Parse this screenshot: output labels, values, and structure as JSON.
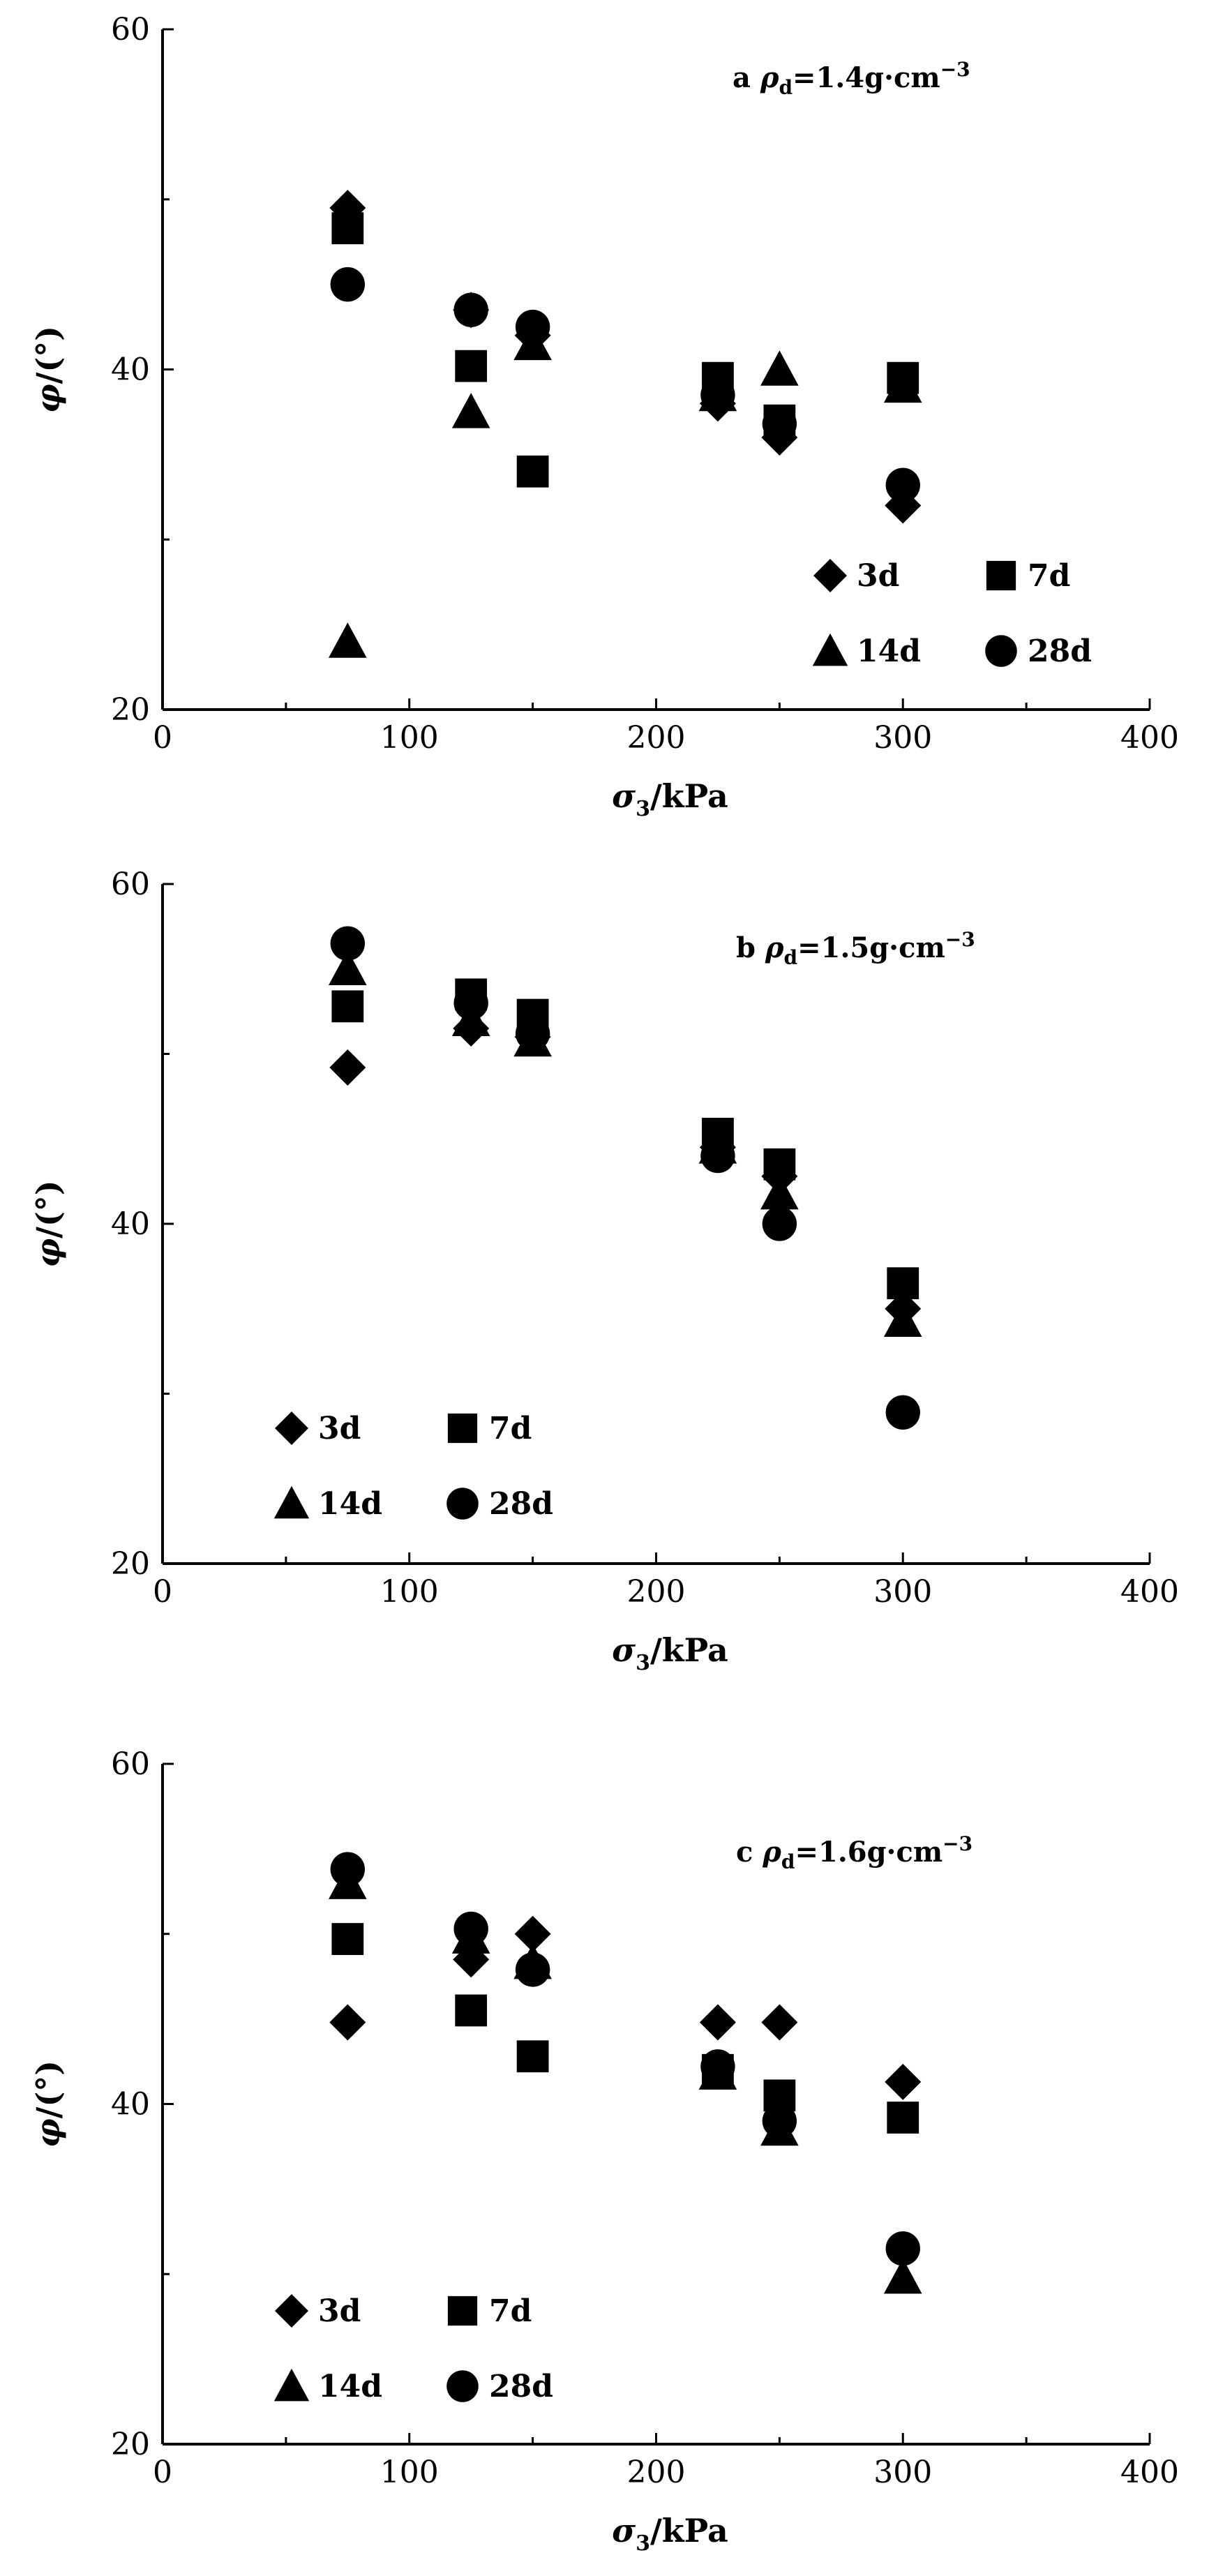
{
  "chart_data": [
    {
      "type": "scatter",
      "panel": "a",
      "title": "ρd=1.4g·cm−3",
      "title_parts": {
        "letter": "a",
        "rho": "ρ",
        "sub": "d",
        "value": "=1.4g·cm",
        "sup": "−3"
      },
      "xlabel": "σ3/kPa",
      "xlabel_parts": {
        "sym": "σ",
        "sub": "3",
        "unit": "/kPa"
      },
      "ylabel": "φ/(°)",
      "ylabel_parts": {
        "sym": "φ",
        "unit": "/(°)"
      },
      "xlim": [
        0,
        400
      ],
      "ylim": [
        20,
        60
      ],
      "xticks": [
        "0",
        "100",
        "200",
        "300",
        "400"
      ],
      "yticks": [
        "20",
        "40",
        "60"
      ],
      "legend_position": "lower-right",
      "series": [
        {
          "name": "3d",
          "marker": "diamond",
          "x": [
            75,
            125,
            150,
            225,
            250,
            300
          ],
          "y": [
            49.5,
            43.5,
            42,
            38,
            36,
            32
          ]
        },
        {
          "name": "7d",
          "marker": "square",
          "x": [
            75,
            125,
            150,
            225,
            250,
            300
          ],
          "y": [
            48.3,
            40.2,
            34,
            39.5,
            37,
            39.5
          ]
        },
        {
          "name": "14d",
          "marker": "triangle",
          "x": [
            75,
            125,
            150,
            225,
            250,
            300
          ],
          "y": [
            24,
            37.5,
            41.5,
            38.5,
            40,
            39
          ]
        },
        {
          "name": "28d",
          "marker": "circle",
          "x": [
            75,
            125,
            150,
            225,
            250,
            300
          ],
          "y": [
            45,
            43.5,
            42.5,
            38.5,
            36.8,
            33.2
          ]
        }
      ]
    },
    {
      "type": "scatter",
      "panel": "b",
      "title": "ρd=1.5g·cm−3",
      "title_parts": {
        "letter": "b",
        "rho": "ρ",
        "sub": "d",
        "value": "=1.5g·cm",
        "sup": "−3"
      },
      "xlabel": "σ3/kPa",
      "xlabel_parts": {
        "sym": "σ",
        "sub": "3",
        "unit": "/kPa"
      },
      "ylabel": "φ/(°)",
      "ylabel_parts": {
        "sym": "φ",
        "unit": "/(°)"
      },
      "xlim": [
        0,
        400
      ],
      "ylim": [
        20,
        60
      ],
      "xticks": [
        "0",
        "100",
        "200",
        "300",
        "400"
      ],
      "yticks": [
        "20",
        "40",
        "60"
      ],
      "legend_position": "lower-left",
      "series": [
        {
          "name": "3d",
          "marker": "diamond",
          "x": [
            75,
            125,
            150,
            225,
            250,
            300
          ],
          "y": [
            49.2,
            51.5,
            51,
            44.5,
            42.8,
            35
          ]
        },
        {
          "name": "7d",
          "marker": "square",
          "x": [
            75,
            125,
            150,
            225,
            250,
            300
          ],
          "y": [
            52.8,
            53.5,
            52.3,
            45.3,
            43.5,
            36.5
          ]
        },
        {
          "name": "14d",
          "marker": "triangle",
          "x": [
            75,
            125,
            150,
            225,
            250,
            300
          ],
          "y": [
            55,
            52,
            50.8,
            44.5,
            41.8,
            34.3
          ]
        },
        {
          "name": "28d",
          "marker": "circle",
          "x": [
            75,
            125,
            150,
            225,
            250,
            300
          ],
          "y": [
            56.5,
            53,
            51.2,
            44,
            40,
            28.9
          ]
        }
      ]
    },
    {
      "type": "scatter",
      "panel": "c",
      "title": "ρd=1.6g·cm−3",
      "title_parts": {
        "letter": "c",
        "rho": "ρ",
        "sub": "d",
        "value": "=1.6g·cm",
        "sup": "−3"
      },
      "xlabel": "σ3/kPa",
      "xlabel_parts": {
        "sym": "σ",
        "sub": "3",
        "unit": "/kPa"
      },
      "ylabel": "φ/(°)",
      "ylabel_parts": {
        "sym": "φ",
        "unit": "/(°)"
      },
      "xlim": [
        0,
        400
      ],
      "ylim": [
        20,
        60
      ],
      "xticks": [
        "0",
        "100",
        "200",
        "300",
        "400"
      ],
      "yticks": [
        "20",
        "40",
        "60"
      ],
      "legend_position": "lower-left",
      "series": [
        {
          "name": "3d",
          "marker": "diamond",
          "x": [
            75,
            125,
            150,
            225,
            250,
            300
          ],
          "y": [
            44.8,
            48.5,
            50,
            44.8,
            44.8,
            41.3
          ]
        },
        {
          "name": "7d",
          "marker": "square",
          "x": [
            75,
            125,
            150,
            225,
            250,
            300
          ],
          "y": [
            49.7,
            45.5,
            42.8,
            42,
            40.5,
            39.2
          ]
        },
        {
          "name": "14d",
          "marker": "triangle",
          "x": [
            75,
            125,
            150,
            225,
            250,
            300
          ],
          "y": [
            53,
            49.8,
            48.3,
            41.8,
            38.5,
            29.8
          ]
        },
        {
          "name": "28d",
          "marker": "circle",
          "x": [
            75,
            125,
            150,
            225,
            250,
            300
          ],
          "y": [
            53.8,
            50.3,
            47.9,
            42.2,
            39,
            31.5
          ]
        }
      ]
    }
  ]
}
